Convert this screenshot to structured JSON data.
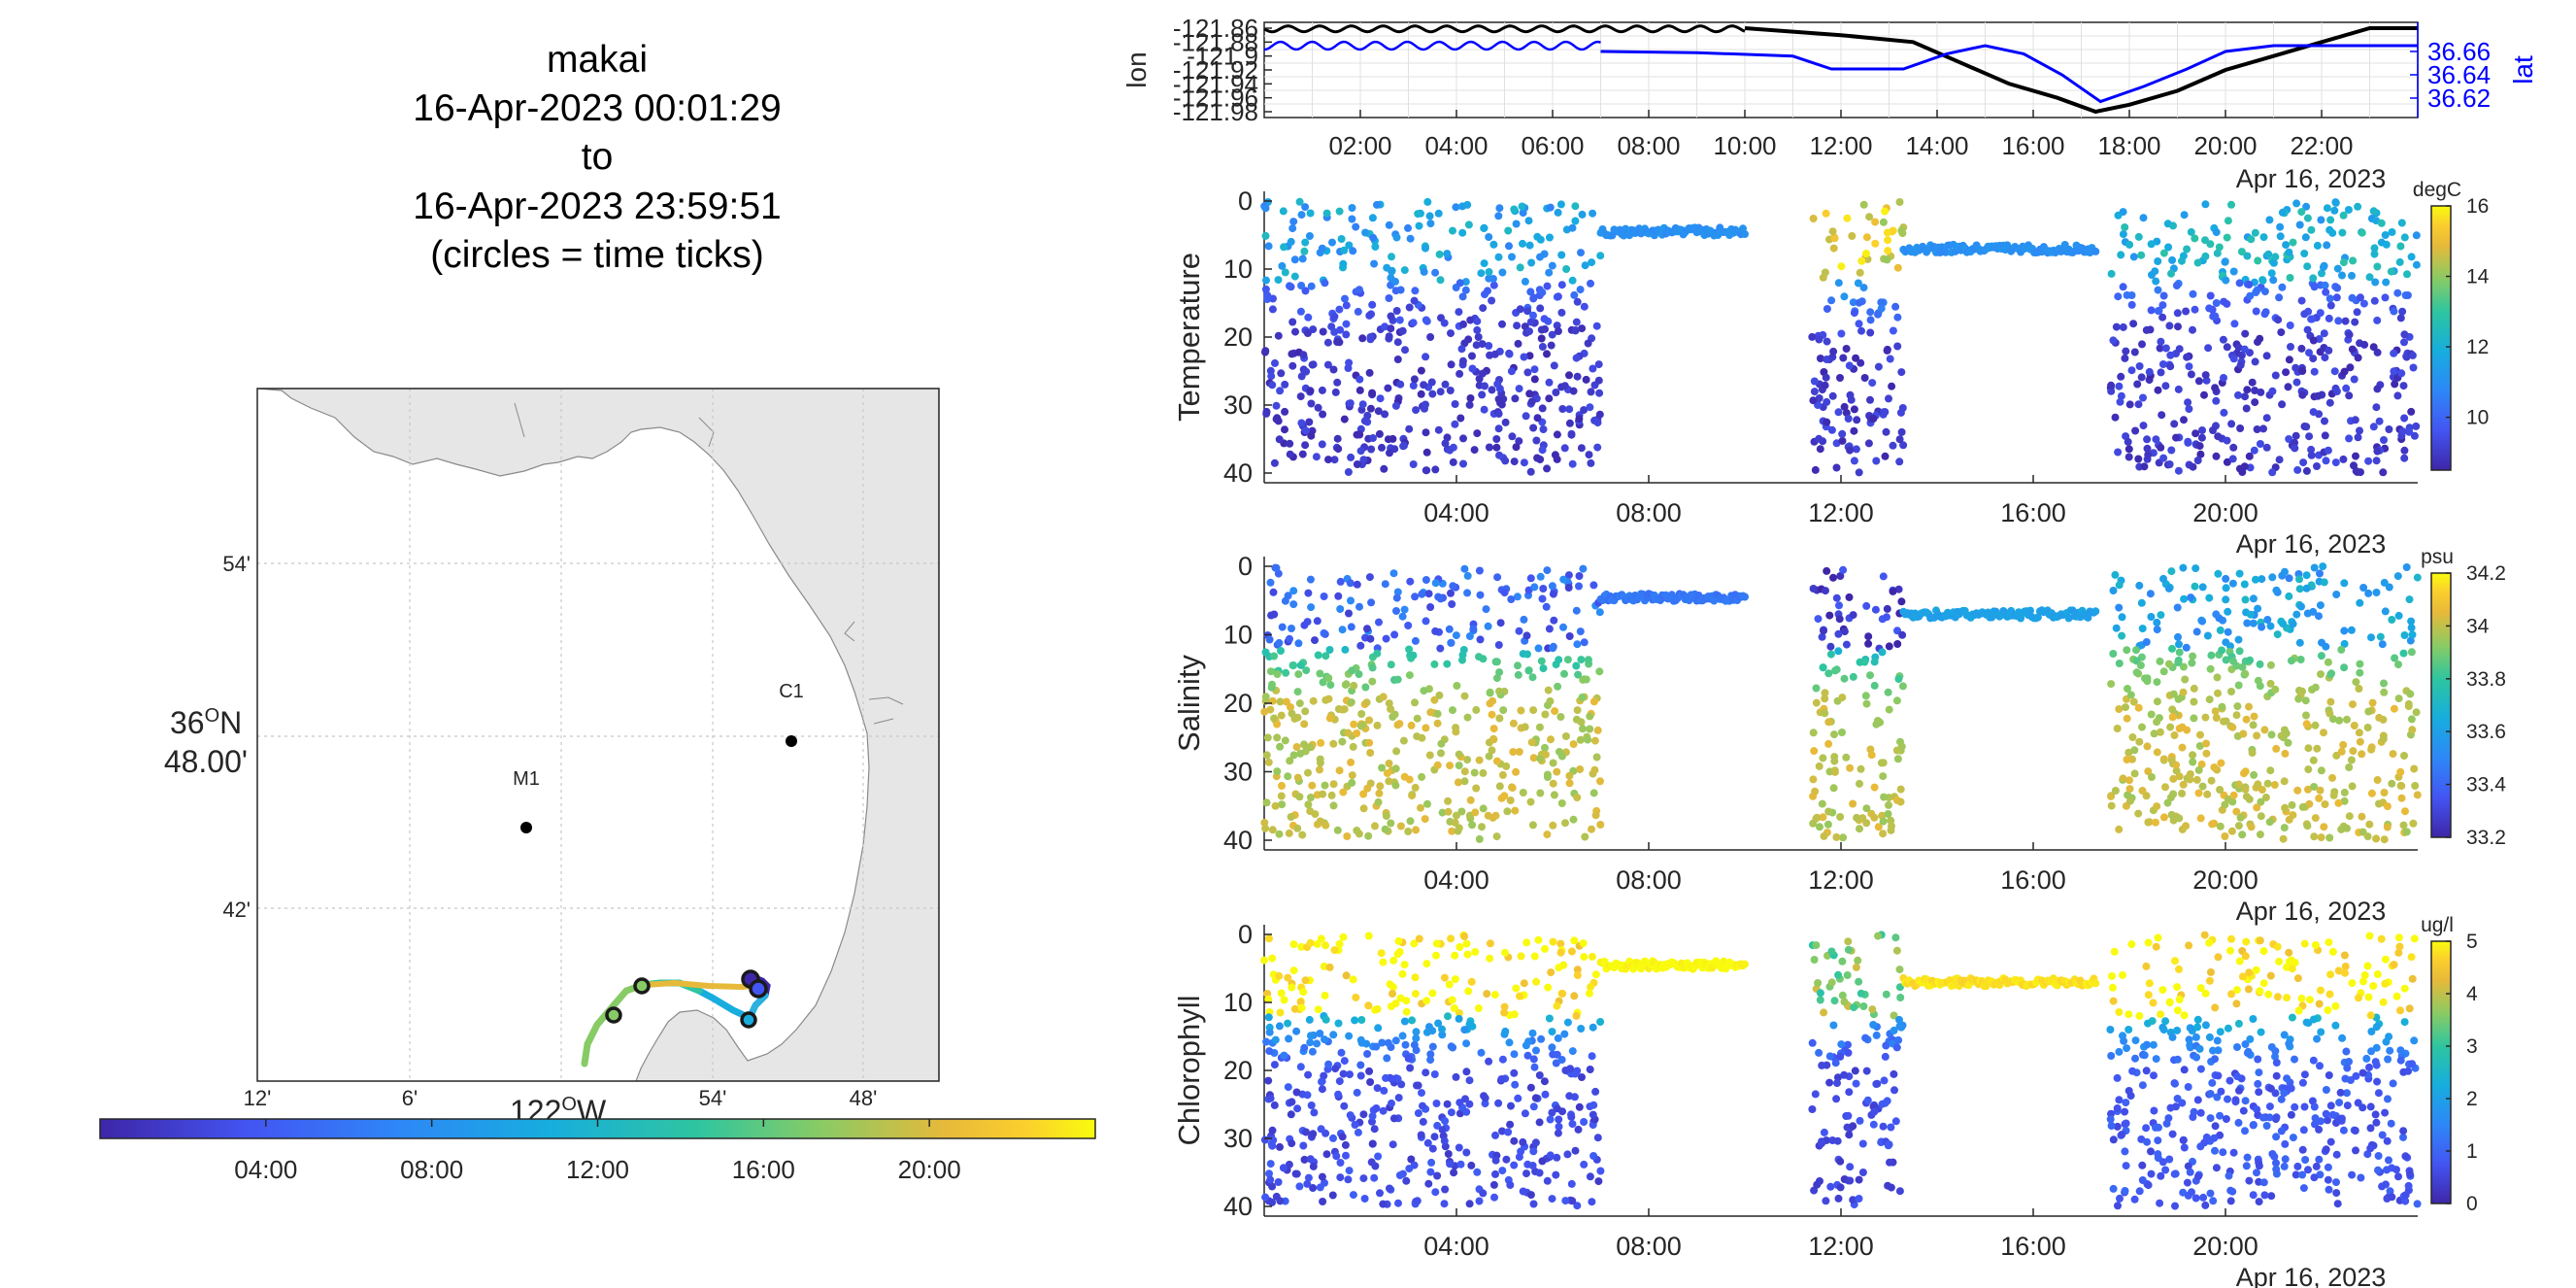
{
  "header": {
    "vehicle": "makai",
    "start": "16-Apr-2023 00:01:29",
    "to": "to",
    "end": "16-Apr-2023 23:59:51",
    "note": "(circles = time ticks)"
  },
  "colors": {
    "lon_line": "#000000",
    "lat_line": "#0000ff",
    "grid": "#dcdcdc",
    "land": "#e6e6e6",
    "colormap_temperature_salinity": "parula",
    "colormap_chlorophyll": "parula-yellow-saturated"
  },
  "map": {
    "y_ticks": [
      "54'",
      "42'"
    ],
    "y_center_label_1": "36",
    "y_center_label_sup": "O",
    "y_center_label_2": "N",
    "y_center_label_3": "48.00'",
    "x_ticks": [
      "12'",
      "6'",
      "54'",
      "48'"
    ],
    "x_center_label": "122",
    "x_center_label_sup": "O",
    "x_center_label_2": "W",
    "stations": [
      {
        "name": "M1",
        "lon": -122.03,
        "lat": 36.75
      },
      {
        "name": "C1",
        "lon": -121.85,
        "lat": 36.8
      }
    ],
    "track_note": "vehicle track colored by time of day; black circles mark time ticks"
  },
  "time_colorbar": {
    "ticks": [
      "04:00",
      "08:00",
      "12:00",
      "16:00",
      "20:00"
    ]
  },
  "chart_data": [
    {
      "type": "line",
      "name": "position",
      "x_ticks": [
        "02:00",
        "04:00",
        "06:00",
        "08:00",
        "10:00",
        "12:00",
        "14:00",
        "16:00",
        "18:00",
        "20:00",
        "22:00"
      ],
      "x_date_label": "Apr 16, 2023",
      "ylabel_left": "lon",
      "ylabel_right": "lat",
      "y_left_ticks": [
        "-121.86",
        "-121.88",
        "-121.9",
        "-121.92",
        "-121.94",
        "-121.96",
        "-121.98"
      ],
      "y_right_ticks": [
        "36.66",
        "36.64",
        "36.62"
      ],
      "xlim_hours": [
        0,
        24
      ],
      "series": [
        {
          "name": "lon",
          "axis": "left",
          "x_hours": [
            0,
            1,
            2,
            3,
            4,
            5,
            6,
            7,
            8,
            10,
            12,
            13.5,
            14.5,
            15.5,
            16.5,
            17.3,
            18,
            19,
            20,
            21,
            22,
            23,
            24
          ],
          "values": [
            -121.86,
            -121.86,
            -121.86,
            -121.86,
            -121.86,
            -121.86,
            -121.86,
            -121.86,
            -121.86,
            -121.86,
            -121.87,
            -121.88,
            -121.91,
            -121.94,
            -121.96,
            -121.98,
            -121.97,
            -121.95,
            -121.92,
            -121.9,
            -121.88,
            -121.86,
            -121.86
          ]
        },
        {
          "name": "lat",
          "axis": "right",
          "x_hours": [
            0,
            1,
            2,
            3,
            4,
            5,
            6,
            7,
            9,
            11,
            11.8,
            12.5,
            13.3,
            14.2,
            15,
            15.8,
            16.6,
            17.4,
            18.3,
            19.2,
            20,
            21,
            22,
            23,
            24
          ],
          "values": [
            36.665,
            36.665,
            36.665,
            36.665,
            36.665,
            36.665,
            36.665,
            36.66,
            36.659,
            36.656,
            36.645,
            36.645,
            36.645,
            36.658,
            36.665,
            36.658,
            36.64,
            36.617,
            36.63,
            36.645,
            36.66,
            36.665,
            36.665,
            36.665,
            36.665
          ]
        }
      ]
    },
    {
      "type": "scatter",
      "name": "temperature",
      "ylabel": "Temperature",
      "ylim": [
        0,
        40
      ],
      "y_ticks": [
        "0",
        "10",
        "20",
        "30",
        "40"
      ],
      "x_ticks": [
        "04:00",
        "08:00",
        "12:00",
        "16:00",
        "20:00"
      ],
      "x_date_label": "Apr 16, 2023",
      "colorbar_unit": "degC",
      "colorbar_ticks": [
        "16",
        "14",
        "12",
        "10"
      ],
      "clim": [
        8.5,
        16
      ],
      "point_count_note": "scatter of sampled depth vs time colored by temperature",
      "segments": [
        {
          "t0": 0,
          "t1": 7.0,
          "kind": "profile",
          "surface_value": 11.5,
          "deep_value": 9.0
        },
        {
          "t0": 7.0,
          "t1": 10.0,
          "kind": "surface",
          "depth": 4.5,
          "value": 11.0
        },
        {
          "t0": 11.4,
          "t1": 13.3,
          "kind": "profile",
          "surface_value": 15.0,
          "deep_value": 9.0
        },
        {
          "t0": 13.3,
          "t1": 17.3,
          "kind": "surface",
          "depth": 7,
          "value": 11.0
        },
        {
          "t0": 17.6,
          "t1": 24,
          "kind": "profile",
          "surface_value": 12.0,
          "deep_value": 9.0
        }
      ]
    },
    {
      "type": "scatter",
      "name": "salinity",
      "ylabel": "Salinity",
      "ylim": [
        0,
        40
      ],
      "y_ticks": [
        "0",
        "10",
        "20",
        "30",
        "40"
      ],
      "x_ticks": [
        "04:00",
        "08:00",
        "12:00",
        "16:00",
        "20:00"
      ],
      "x_date_label": "Apr 16, 2023",
      "colorbar_unit": "psu",
      "colorbar_ticks": [
        "34.2",
        "34",
        "33.8",
        "33.6",
        "33.4",
        "33.2"
      ],
      "clim": [
        33.2,
        34.2
      ],
      "segments": [
        {
          "t0": 0,
          "t1": 7.0,
          "kind": "profile",
          "surface_value": 33.4,
          "deep_value": 34.0
        },
        {
          "t0": 7.0,
          "t1": 10.0,
          "kind": "surface",
          "depth": 4.5,
          "value": 33.45
        },
        {
          "t0": 11.4,
          "t1": 13.3,
          "kind": "profile",
          "surface_value": 33.25,
          "deep_value": 34.0
        },
        {
          "t0": 13.3,
          "t1": 17.3,
          "kind": "surface",
          "depth": 7,
          "value": 33.6
        },
        {
          "t0": 17.6,
          "t1": 24,
          "kind": "profile",
          "surface_value": 33.6,
          "deep_value": 34.0
        }
      ]
    },
    {
      "type": "scatter",
      "name": "chlorophyll",
      "ylabel": "Chlorophyll",
      "ylim": [
        0,
        40
      ],
      "y_ticks": [
        "0",
        "10",
        "20",
        "30",
        "40"
      ],
      "x_ticks": [
        "04:00",
        "08:00",
        "12:00",
        "16:00",
        "20:00"
      ],
      "x_date_label": "Apr 16, 2023",
      "colorbar_unit": "ug/l",
      "colorbar_ticks": [
        "5",
        "4",
        "3",
        "2",
        "1",
        "0"
      ],
      "clim": [
        0,
        5
      ],
      "segments": [
        {
          "t0": 0,
          "t1": 7.0,
          "kind": "profile",
          "surface_value": 5.0,
          "deep_value": 0.6
        },
        {
          "t0": 7.0,
          "t1": 10.0,
          "kind": "surface",
          "depth": 4.5,
          "value": 5.0
        },
        {
          "t0": 11.4,
          "t1": 13.3,
          "kind": "profile",
          "surface_value": 3.5,
          "deep_value": 0.6
        },
        {
          "t0": 13.3,
          "t1": 17.3,
          "kind": "surface",
          "depth": 7,
          "value": 4.8
        },
        {
          "t0": 17.6,
          "t1": 24,
          "kind": "profile",
          "surface_value": 5.0,
          "deep_value": 0.8
        }
      ]
    }
  ]
}
